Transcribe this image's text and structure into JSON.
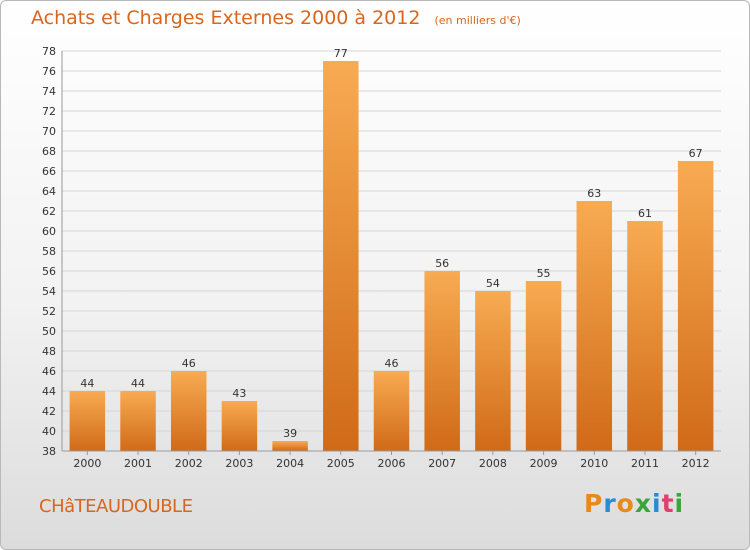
{
  "title": "Achats et Charges Externes 2000 à 2012",
  "unit": "(en milliers d'€)",
  "city": "CHâTEAUDOUBLE",
  "brand": {
    "text": "Proxiti",
    "colors": [
      "#e8891c",
      "#2a8ad4",
      "#e8891c",
      "#3aa53a",
      "#2a8ad4",
      "#e04070",
      "#3aa53a"
    ]
  },
  "colors": {
    "accent": "#d9661c",
    "bar_light": "#f7a94e",
    "bar_dark": "#d06a18"
  },
  "chart_data": {
    "type": "bar",
    "categories": [
      "2000",
      "2001",
      "2002",
      "2003",
      "2004",
      "2005",
      "2006",
      "2007",
      "2008",
      "2009",
      "2010",
      "2011",
      "2012"
    ],
    "values": [
      44,
      44,
      46,
      43,
      39,
      77,
      46,
      56,
      54,
      55,
      63,
      61,
      67
    ],
    "title": "Achats et Charges Externes 2000 à 2012",
    "ylim": [
      38,
      78
    ],
    "yticks": [
      38,
      40,
      42,
      44,
      46,
      48,
      50,
      52,
      54,
      56,
      58,
      60,
      62,
      64,
      66,
      68,
      70,
      72,
      74,
      76,
      78
    ],
    "grid": true,
    "legend": "none"
  }
}
